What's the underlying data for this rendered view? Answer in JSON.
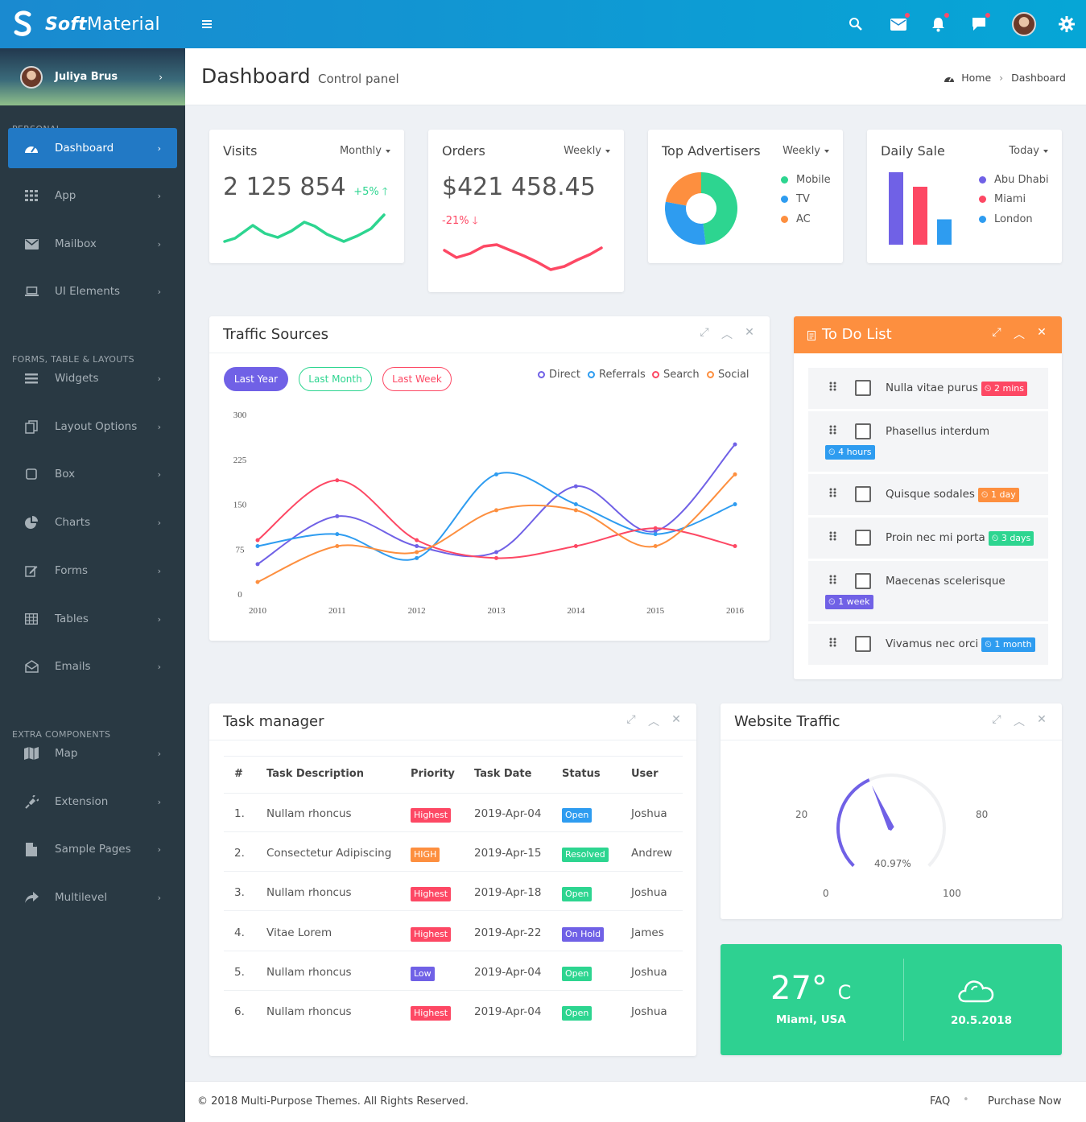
{
  "brand": {
    "bold": "Soft",
    "light": "Material"
  },
  "header_icons": [
    "menu-icon",
    "search-icon",
    "mail-icon",
    "bell-icon",
    "chat-icon",
    "avatar",
    "gear-icon"
  ],
  "user": {
    "name": "Juliya Brus"
  },
  "sidebar": {
    "sections": [
      "PERSONAL",
      "FORMS, TABLE & LAYOUTS",
      "EXTRA COMPONENTS"
    ],
    "items": [
      {
        "label": "Dashboard",
        "icon": "dashboard-icon"
      },
      {
        "label": "App",
        "icon": "apps-icon"
      },
      {
        "label": "Mailbox",
        "icon": "mail-icon"
      },
      {
        "label": "UI Elements",
        "icon": "laptop-icon"
      },
      {
        "label": "Widgets",
        "icon": "bars-icon"
      },
      {
        "label": "Layout Options",
        "icon": "copy-icon"
      },
      {
        "label": "Box",
        "icon": "square-icon"
      },
      {
        "label": "Charts",
        "icon": "pie-icon"
      },
      {
        "label": "Forms",
        "icon": "edit-icon"
      },
      {
        "label": "Tables",
        "icon": "table-icon"
      },
      {
        "label": "Emails",
        "icon": "envelope-open-icon"
      },
      {
        "label": "Map",
        "icon": "map-icon"
      },
      {
        "label": "Extension",
        "icon": "plug-icon"
      },
      {
        "label": "Sample Pages",
        "icon": "file-icon"
      },
      {
        "label": "Multilevel",
        "icon": "share-icon"
      }
    ]
  },
  "page": {
    "title": "Dashboard",
    "subtitle": "Control panel",
    "crumb_home": "Home",
    "crumb_current": "Dashboard"
  },
  "stats": {
    "visits": {
      "title": "Visits",
      "period": "Monthly",
      "value": "2 125 854",
      "change": "+5%"
    },
    "orders": {
      "title": "Orders",
      "period": "Weekly",
      "value": "$421 458.45",
      "change": "-21%"
    },
    "advertisers": {
      "title": "Top Advertisers",
      "period": "Weekly",
      "legend": [
        "Mobile",
        "TV",
        "AC"
      ],
      "shares": [
        48,
        30,
        22
      ],
      "colors": [
        "#2dd590",
        "#2e9cf0",
        "#fd8f3f"
      ]
    },
    "daily": {
      "title": "Daily Sale",
      "period": "Today",
      "legend": [
        "Abu Dhabi",
        "Miami",
        "London"
      ],
      "values": [
        100,
        80,
        35
      ],
      "colors": [
        "#7061e6",
        "#fd4864",
        "#2e9cf0"
      ]
    }
  },
  "traffic": {
    "title": "Traffic Sources",
    "buttons": [
      "Last Year",
      "Last Month",
      "Last Week"
    ],
    "legend": [
      "Direct",
      "Referrals",
      "Search",
      "Social"
    ]
  },
  "chart_data": {
    "type": "line",
    "categories": [
      "2010",
      "2011",
      "2012",
      "2013",
      "2014",
      "2015",
      "2016"
    ],
    "ylim": [
      0,
      300
    ],
    "yticks": [
      "300",
      "225",
      "150",
      "75",
      "0"
    ],
    "series": [
      {
        "name": "Direct",
        "color": "#7061e6",
        "values": [
          50,
          130,
          80,
          70,
          180,
          105,
          250
        ]
      },
      {
        "name": "Referrals",
        "color": "#2e9cf0",
        "values": [
          80,
          100,
          60,
          200,
          150,
          100,
          150
        ]
      },
      {
        "name": "Search",
        "color": "#fd4864",
        "values": [
          90,
          190,
          90,
          60,
          80,
          110,
          80
        ]
      },
      {
        "name": "Social",
        "color": "#fd8f3f",
        "values": [
          20,
          80,
          70,
          140,
          140,
          80,
          200
        ]
      }
    ]
  },
  "todo": {
    "title": "To Do List",
    "items": [
      {
        "text": "Nulla vitae purus",
        "badge": "2 mins",
        "color": "#fd4864"
      },
      {
        "text": "Phasellus interdum",
        "badge": "4 hours",
        "color": "#2e9cf0"
      },
      {
        "text": "Quisque sodales",
        "badge": "1 day",
        "color": "#fd8f3f"
      },
      {
        "text": "Proin nec mi porta",
        "badge": "3 days",
        "color": "#2dd590"
      },
      {
        "text": "Maecenas scelerisque",
        "badge": "1 week",
        "color": "#7061e6"
      },
      {
        "text": "Vivamus nec orci",
        "badge": "1 month",
        "color": "#2e9cf0"
      }
    ]
  },
  "tasks": {
    "title": "Task manager",
    "headers": [
      "#",
      "Task Description",
      "Priority",
      "Task Date",
      "Status",
      "User"
    ],
    "rows": [
      {
        "n": "1.",
        "desc": "Nullam rhoncus",
        "priority": "Highest",
        "pcolor": "#fd4864",
        "date": "2019-Apr-04",
        "status": "Open",
        "scolor": "#2e9cf0",
        "user": "Joshua"
      },
      {
        "n": "2.",
        "desc": "Consectetur Adipiscing",
        "priority": "HIGH",
        "pcolor": "#fd8f3f",
        "date": "2019-Apr-15",
        "status": "Resolved",
        "scolor": "#2dd590",
        "user": "Andrew"
      },
      {
        "n": "3.",
        "desc": "Nullam rhoncus",
        "priority": "Highest",
        "pcolor": "#fd4864",
        "date": "2019-Apr-18",
        "status": "Open",
        "scolor": "#2dd590",
        "user": "Joshua"
      },
      {
        "n": "4.",
        "desc": "Vitae Lorem",
        "priority": "Highest",
        "pcolor": "#fd4864",
        "date": "2019-Apr-22",
        "status": "On Hold",
        "scolor": "#7061e6",
        "user": "James"
      },
      {
        "n": "5.",
        "desc": "Nullam rhoncus",
        "priority": "Low",
        "pcolor": "#7061e6",
        "date": "2019-Apr-04",
        "status": "Open",
        "scolor": "#2dd590",
        "user": "Joshua"
      },
      {
        "n": "6.",
        "desc": "Nullam rhoncus",
        "priority": "Highest",
        "pcolor": "#fd4864",
        "date": "2019-Apr-04",
        "status": "Open",
        "scolor": "#2dd590",
        "user": "Joshua"
      }
    ]
  },
  "website_traffic": {
    "title": "Website Traffic",
    "value": "40.97%",
    "fraction": 0.4097,
    "labels": [
      "20",
      "80",
      "0",
      "100"
    ]
  },
  "weather": {
    "temp": "27°",
    "unit": "C",
    "location": "Miami, USA",
    "date": "20.5.2018",
    "icon": "cloud-icon"
  },
  "footer": {
    "copyright": "© 2018 Multi-Purpose Themes. All Rights Reserved.",
    "faq": "FAQ",
    "purchase": "Purchase Now"
  },
  "colors": {
    "primary": "#2279c5",
    "sidebar": "#293943",
    "orange": "#fd8f3f",
    "green": "#2dd590",
    "red": "#fd4864",
    "blue": "#2e9cf0",
    "purple": "#7061e6"
  }
}
